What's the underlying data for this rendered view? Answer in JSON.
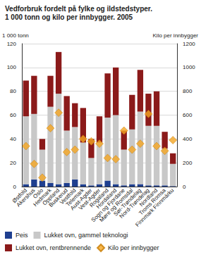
{
  "chart_data": {
    "type": "bar",
    "title": "Vedforbruk fordelt på fylke og ildstedstyper.",
    "subtitle": "1 000 tonn og kilo per innbygger. 2005",
    "ylabel": "1 000 tonn",
    "y2label": "Kilo per innbygger",
    "stacked": true,
    "grid": true,
    "legend": "bottom",
    "categories": [
      "Østfold",
      "Akershus",
      "Oslo",
      "Hedmark",
      "Oppland",
      "Buskerud",
      "Vestfold",
      "Telemark",
      "Aust-Agder",
      "Vest-Agder",
      "Rogaland",
      "Hordaland",
      "Sogn og Fjordane",
      "Møre og Romsdal",
      "Sør-Trøndelag",
      "Nord-Trøndelag",
      "Nordland",
      "Troms Romsa",
      "Finnmark Finnmárku"
    ],
    "series": [
      {
        "name": "Peis",
        "type": "bar",
        "color": "#1f3f8f",
        "values": [
          2,
          6,
          5,
          3,
          2,
          3,
          6,
          2,
          1,
          2,
          5,
          2,
          1,
          2,
          2,
          1,
          1,
          1,
          0.5
        ]
      },
      {
        "name": "Lukket ovn, gammel teknologi",
        "type": "bar",
        "color": "#c8c8c8",
        "values": [
          57,
          55,
          26,
          64,
          76,
          44,
          44,
          35,
          23,
          35,
          53,
          58,
          30,
          46,
          61,
          50,
          50,
          31,
          18.5
        ]
      },
      {
        "name": "Lukket ovn, rentbrennende",
        "type": "bar",
        "color": "#8b1a1a",
        "values": [
          30,
          32,
          9,
          26,
          35,
          29,
          20,
          29,
          16,
          22,
          37,
          40,
          16,
          29,
          35,
          27,
          29,
          14,
          9
        ]
      },
      {
        "name": "Kilo per innbygger",
        "type": "scatter",
        "axis": "y2",
        "marker": "diamond",
        "color": "#f5a623",
        "values": [
          340,
          190,
          75,
          490,
          620,
          290,
          310,
          400,
          380,
          360,
          240,
          230,
          470,
          310,
          360,
          610,
          340,
          300,
          390
        ]
      }
    ],
    "ylim": [
      0,
      120
    ],
    "yticks": [
      0,
      20,
      40,
      60,
      80,
      100,
      120
    ],
    "y2lim": [
      0,
      1200
    ],
    "y2ticks": [
      0,
      200,
      400,
      600,
      800,
      1000,
      1200
    ]
  }
}
